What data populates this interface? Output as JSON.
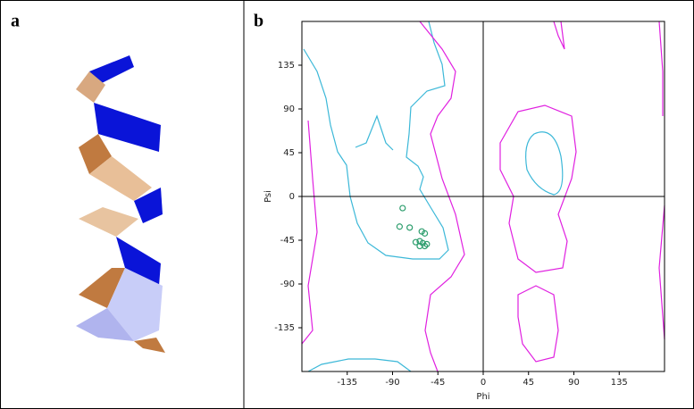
{
  "panel_a": {
    "label": "a"
  },
  "chart_data": {
    "type": "scatter",
    "panel_label": "b",
    "xlabel": "Phi",
    "ylabel": "Psi",
    "series": [
      {
        "color": "#2e9e6e",
        "x": [
          -80,
          -83,
          -73,
          -61,
          -58,
          -67,
          -63,
          -60,
          -56,
          -63,
          -58
        ],
        "values": [
          -12,
          -31,
          -32,
          -36,
          -38,
          -47,
          -46,
          -48,
          -49,
          -51,
          -51
        ]
      }
    ],
    "xlim": [
      -180,
      180
    ],
    "ylim": [
      -180,
      180
    ],
    "xticks": [
      -135,
      -90,
      -45,
      0,
      45,
      90,
      135
    ],
    "yticks": [
      -135,
      -90,
      -45,
      0,
      45,
      90,
      135
    ]
  }
}
